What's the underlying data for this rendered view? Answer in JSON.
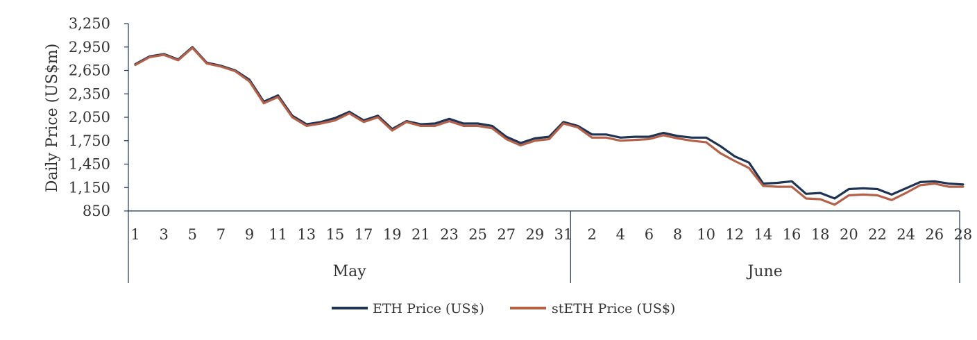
{
  "colors": {
    "eth": "#1f3453",
    "steth": "#b5614a",
    "axis": "#1f3453",
    "text": "#333333"
  },
  "chart_data": {
    "type": "line",
    "title": "",
    "xlabel": "",
    "ylabel": "Daily Price (US$m)",
    "ylim": [
      850,
      3250
    ],
    "y_ticks": [
      "3,250",
      "2,950",
      "2,650",
      "2,350",
      "2,050",
      "1,750",
      "1,450",
      "1,150",
      "850"
    ],
    "y_tick_values": [
      3250,
      2950,
      2650,
      2350,
      2050,
      1750,
      1450,
      1150,
      850
    ],
    "groups": [
      {
        "label": "May",
        "start": 0,
        "count": 31
      },
      {
        "label": "June",
        "start": 31,
        "count": 28
      }
    ],
    "x_tick_labels": [
      "1",
      "3",
      "5",
      "7",
      "9",
      "11",
      "13",
      "15",
      "17",
      "19",
      "21",
      "23",
      "25",
      "27",
      "29",
      "31",
      "2",
      "4",
      "6",
      "8",
      "10",
      "12",
      "14",
      "16",
      "18",
      "20",
      "22",
      "24",
      "26",
      "28"
    ],
    "x_tick_indices": [
      0,
      2,
      4,
      6,
      8,
      10,
      12,
      14,
      16,
      18,
      20,
      22,
      24,
      26,
      28,
      30,
      32,
      34,
      36,
      38,
      40,
      42,
      44,
      46,
      48,
      50,
      52,
      54,
      56,
      58
    ],
    "series": [
      {
        "name": "ETH Price (US$)",
        "values": [
          2730,
          2830,
          2860,
          2790,
          2950,
          2750,
          2710,
          2650,
          2530,
          2250,
          2330,
          2070,
          1960,
          1990,
          2040,
          2120,
          2010,
          2070,
          1900,
          2000,
          1960,
          1970,
          2030,
          1970,
          1970,
          1940,
          1800,
          1720,
          1780,
          1800,
          1990,
          1940,
          1830,
          1830,
          1790,
          1800,
          1800,
          1850,
          1810,
          1790,
          1790,
          1680,
          1550,
          1470,
          1200,
          1210,
          1230,
          1070,
          1080,
          1010,
          1130,
          1140,
          1130,
          1060,
          1140,
          1220,
          1230,
          1200,
          1190
        ]
      },
      {
        "name": "stETH Price (US$)",
        "values": [
          2720,
          2820,
          2850,
          2780,
          2940,
          2740,
          2700,
          2640,
          2510,
          2230,
          2310,
          2050,
          1940,
          1970,
          2010,
          2100,
          1990,
          2050,
          1880,
          1990,
          1940,
          1940,
          2000,
          1940,
          1940,
          1910,
          1770,
          1690,
          1750,
          1770,
          1970,
          1920,
          1790,
          1790,
          1750,
          1760,
          1770,
          1820,
          1780,
          1750,
          1730,
          1590,
          1490,
          1400,
          1170,
          1160,
          1160,
          1010,
          1000,
          930,
          1050,
          1060,
          1050,
          990,
          1080,
          1180,
          1200,
          1160,
          1160
        ]
      }
    ],
    "legend": {
      "position": "bottom"
    },
    "grid": false
  }
}
